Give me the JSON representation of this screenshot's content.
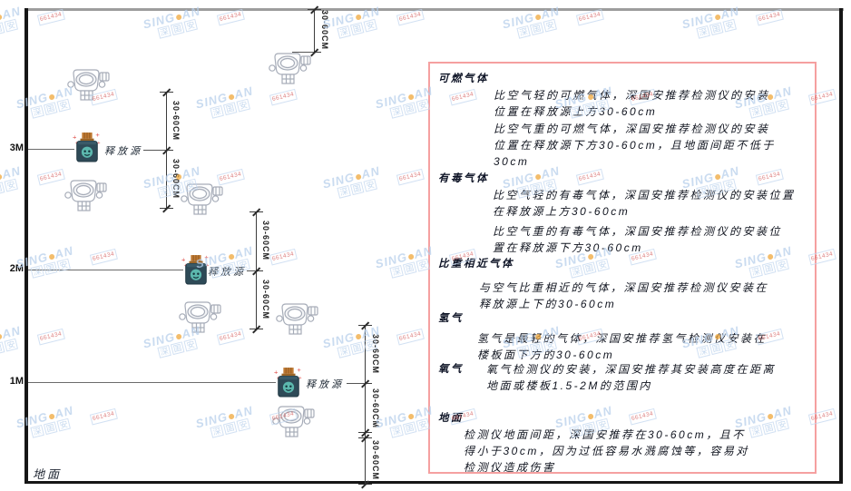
{
  "watermark": {
    "brand_prefix": "SING",
    "brand_suffix": "AN",
    "brand_cn": "深国安",
    "code": "661434"
  },
  "diagram": {
    "axis_labels": [
      "3M",
      "2M",
      "1M"
    ],
    "ground_label": "地面",
    "release_source_label": "释放源",
    "dim_label": "30-60CM",
    "detector_icon": "gas-detector",
    "source_icon": "gas-release-source"
  },
  "panel": {
    "sections": [
      {
        "title": "可燃气体",
        "paragraphs": [
          "比空气轻的可燃气体，深国安推荐检测仪的安装位置在释放源上方30-60cm",
          "比空气重的可燃气体，深国安推荐检测仪的安装位置在释放源下方30-60cm，且地面间距不低于30cm"
        ]
      },
      {
        "title": "有毒气体",
        "paragraphs": [
          "比空气轻的有毒气体，深国安推荐检测仪的安装位置在释放源上方30-60cm",
          "比空气重的有毒气体，深国安推荐检测仪的安装位置在释放源下方30-60cm"
        ]
      },
      {
        "title": "比重相近气体",
        "paragraphs": [
          "与空气比重相近的气体，深国安推荐检测仪安装在释放源上下的30-60cm"
        ]
      },
      {
        "title": "氢气",
        "paragraphs": [
          "氢气是最轻的气体，深国安推荐氢气检测仪安装在楼板面下方的30-60cm"
        ]
      },
      {
        "title": "氧气",
        "paragraphs": [
          "氧气检测仪的安装，深国安推荐其安装高度在距离地面或楼板1.5-2M的范围内"
        ]
      },
      {
        "title": "地面",
        "paragraphs": [
          "检测仪地面间距，深国安推荐在30-60cm，且不得小于30cm，因为过低容易水溅腐蚀等，容易对检测仪造成伤害"
        ]
      }
    ]
  },
  "colors": {
    "panel_border": "#f5a0a0",
    "source_body": "#2e4a57",
    "source_cap": "#c07a33",
    "watermark_blue": "#b7cfeb",
    "watermark_red": "#d25757"
  }
}
